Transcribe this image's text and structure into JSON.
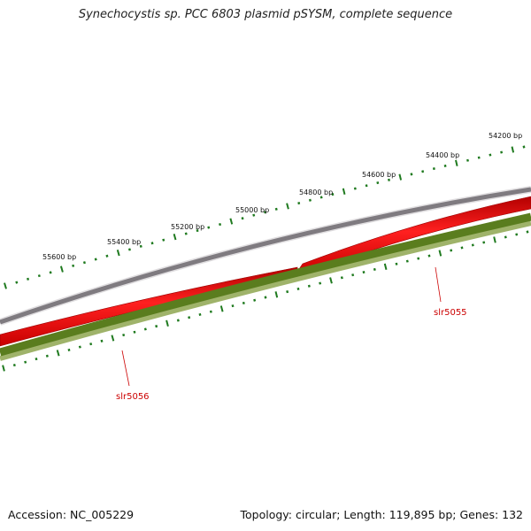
{
  "title": "Synechocystis sp. PCC 6803 plasmid pSYSM, complete sequence",
  "footer": {
    "accession": "Accession: NC_005229",
    "topology": "Topology: circular; Length: 119,895 bp; Genes: 132"
  },
  "scale": {
    "unit": "bp",
    "labels": [
      {
        "bp": 54200,
        "text": "54200 bp"
      },
      {
        "bp": 54400,
        "text": "54400 bp"
      },
      {
        "bp": 54600,
        "text": "54600 bp"
      },
      {
        "bp": 54800,
        "text": "54800 bp"
      },
      {
        "bp": 55000,
        "text": "55000 bp"
      },
      {
        "bp": 55200,
        "text": "55200 bp"
      },
      {
        "bp": 55400,
        "text": "55400 bp"
      },
      {
        "bp": 55600,
        "text": "55600 bp"
      }
    ]
  },
  "genes": [
    {
      "name": "slr5055",
      "color": "#cc0000"
    },
    {
      "name": "slr5056",
      "color": "#cc0000"
    }
  ],
  "colors": {
    "backbone": "#7f7b80",
    "gene_track": "#ee0000",
    "green_track": "#5a7d1e",
    "ticks": "#1f7a1f",
    "label_line": "#cc0000"
  }
}
